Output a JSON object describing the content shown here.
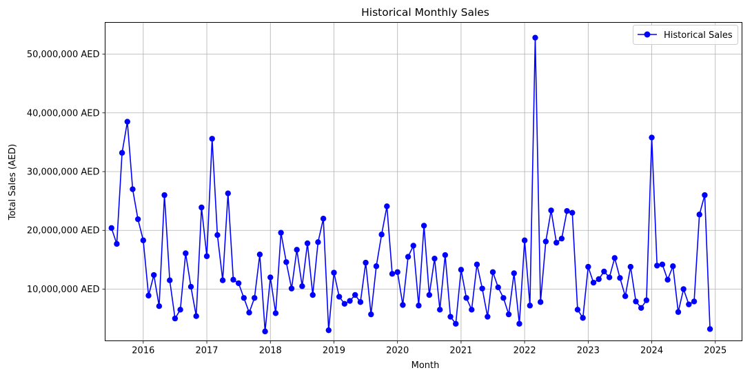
{
  "chart_data": {
    "type": "line",
    "title": "Historical Monthly Sales",
    "xlabel": "Month",
    "ylabel": "Total Sales (AED)",
    "grid": true,
    "legend_position": "top-right",
    "xlim": [
      2015.4,
      2025.42
    ],
    "ylim": [
      1200000,
      55400000
    ],
    "x_ticks": [
      2016,
      2017,
      2018,
      2019,
      2020,
      2021,
      2022,
      2023,
      2024,
      2025
    ],
    "x_tick_labels": [
      "2016",
      "2017",
      "2018",
      "2019",
      "2020",
      "2021",
      "2022",
      "2023",
      "2024",
      "2025"
    ],
    "y_ticks": [
      10000000,
      20000000,
      30000000,
      40000000,
      50000000
    ],
    "y_tick_labels": [
      "10,000,000 AED",
      "20,000,000 AED",
      "30,000,000 AED",
      "40,000,000 AED",
      "50,000,000 AED"
    ],
    "color": "#0000ff",
    "series": [
      {
        "name": "Historical Sales",
        "start_year": 2015,
        "start_month": 7,
        "values": [
          20400000,
          17700000,
          33200000,
          38500000,
          27000000,
          21900000,
          18300000,
          8900000,
          12400000,
          7100000,
          26000000,
          11500000,
          5000000,
          6500000,
          16100000,
          10400000,
          5400000,
          23900000,
          15600000,
          35600000,
          19200000,
          11500000,
          26300000,
          11600000,
          11000000,
          8500000,
          6000000,
          8500000,
          15900000,
          2800000,
          12000000,
          5900000,
          19600000,
          14600000,
          10100000,
          16700000,
          10500000,
          17800000,
          9000000,
          18000000,
          22000000,
          3000000,
          12800000,
          8700000,
          7500000,
          8000000,
          9000000,
          7800000,
          14500000,
          5700000,
          13900000,
          19300000,
          24100000,
          12600000,
          12900000,
          7300000,
          15500000,
          17400000,
          7200000,
          20800000,
          9000000,
          15200000,
          6500000,
          15800000,
          5300000,
          4100000,
          13300000,
          8500000,
          6500000,
          14200000,
          10100000,
          5300000,
          12900000,
          10300000,
          8500000,
          5700000,
          12700000,
          4100000,
          18300000,
          7200000,
          52800000,
          7800000,
          18100000,
          23400000,
          17900000,
          18600000,
          23300000,
          23000000,
          6500000,
          5100000,
          13800000,
          11100000,
          11700000,
          13000000,
          12000000,
          15300000,
          11900000,
          8800000,
          13800000,
          7900000,
          6800000,
          8100000,
          35800000,
          14000000,
          14200000,
          11600000,
          13900000,
          6100000,
          10000000,
          7400000,
          7900000,
          22700000,
          26000000,
          3200000
        ]
      }
    ]
  }
}
